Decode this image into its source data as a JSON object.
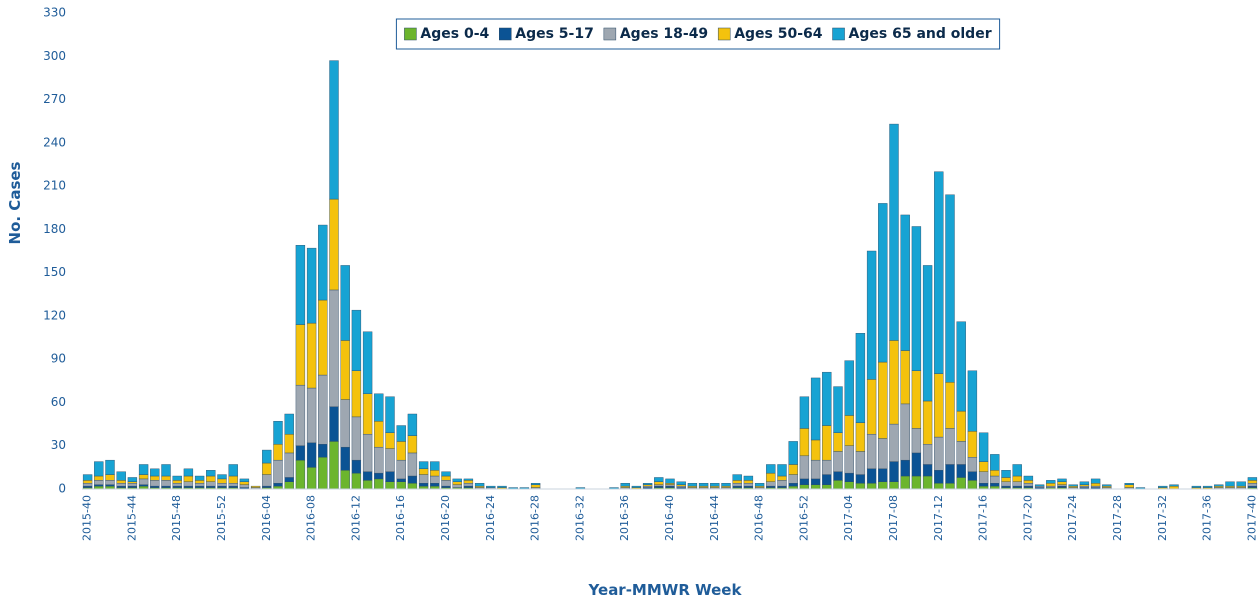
{
  "chart_data": {
    "type": "stacked_bar",
    "y_label": "No. Cases",
    "x_label": "Year-MMWR Week",
    "categories": [
      "2015-40",
      null,
      null,
      null,
      "2015-44",
      null,
      null,
      null,
      "2015-48",
      null,
      null,
      null,
      "2015-52",
      null,
      null,
      null,
      "2016-04",
      null,
      null,
      null,
      "2016-08",
      null,
      null,
      null,
      "2016-12",
      null,
      null,
      null,
      "2016-16",
      null,
      null,
      null,
      "2016-20",
      null,
      null,
      null,
      "2016-24",
      null,
      null,
      null,
      "2016-28",
      null,
      null,
      null,
      "2016-32",
      null,
      null,
      null,
      "2016-36",
      null,
      null,
      null,
      "2016-40",
      null,
      null,
      null,
      "2016-44",
      null,
      null,
      null,
      "2016-48",
      null,
      null,
      null,
      "2016-52",
      null,
      null,
      null,
      "2017-04",
      null,
      null,
      null,
      "2017-08",
      null,
      null,
      null,
      "2017-12",
      null,
      null,
      null,
      "2017-16",
      null,
      null,
      null,
      "2017-20",
      null,
      null,
      null,
      "2017-24",
      null,
      null,
      null,
      "2017-28",
      null,
      null,
      null,
      "2017-32",
      null,
      null,
      null,
      "2017-36",
      null,
      null,
      null,
      "2017-40"
    ],
    "series": [
      {
        "name": "Ages 0-4",
        "color": "#6cb52d",
        "values": [
          1,
          2,
          2,
          1,
          1,
          2,
          1,
          1,
          1,
          1,
          1,
          1,
          1,
          1,
          0,
          0,
          1,
          2,
          5,
          20,
          15,
          22,
          33,
          13,
          11,
          6,
          7,
          5,
          5,
          4,
          2,
          2,
          1,
          1,
          1,
          0,
          0,
          0,
          0,
          0,
          0,
          0,
          0,
          0,
          0,
          0,
          0,
          0,
          0,
          0,
          0,
          1,
          1,
          0,
          0,
          0,
          0,
          0,
          1,
          1,
          0,
          1,
          1,
          2,
          3,
          3,
          3,
          6,
          5,
          4,
          4,
          5,
          5,
          9,
          9,
          9,
          4,
          4,
          8,
          6,
          2,
          2,
          1,
          1,
          1,
          0,
          1,
          1,
          0,
          0,
          0,
          0,
          0,
          0,
          0,
          0,
          0,
          0,
          0,
          0,
          0,
          0,
          0,
          0,
          1
        ]
      },
      {
        "name": "Ages 5-17",
        "color": "#0b5394",
        "values": [
          1,
          1,
          1,
          1,
          1,
          1,
          1,
          1,
          1,
          1,
          1,
          1,
          1,
          1,
          1,
          0,
          1,
          2,
          3,
          10,
          17,
          9,
          24,
          16,
          9,
          6,
          4,
          7,
          2,
          5,
          2,
          2,
          1,
          0,
          1,
          0,
          0,
          0,
          0,
          0,
          0,
          0,
          0,
          0,
          0,
          0,
          0,
          0,
          0,
          0,
          1,
          1,
          1,
          1,
          0,
          0,
          0,
          0,
          1,
          1,
          0,
          1,
          1,
          2,
          4,
          4,
          7,
          6,
          6,
          6,
          10,
          9,
          14,
          11,
          16,
          8,
          9,
          13,
          9,
          6,
          2,
          2,
          1,
          1,
          1,
          1,
          0,
          1,
          0,
          1,
          1,
          0,
          0,
          0,
          0,
          0,
          0,
          0,
          0,
          0,
          0,
          0,
          0,
          0,
          1
        ]
      },
      {
        "name": "Ages 18-49",
        "color": "#9ea7b1",
        "values": [
          2,
          3,
          3,
          2,
          2,
          4,
          4,
          4,
          2,
          3,
          2,
          3,
          2,
          2,
          2,
          1,
          8,
          16,
          17,
          42,
          38,
          48,
          81,
          33,
          30,
          26,
          18,
          16,
          13,
          16,
          6,
          5,
          4,
          2,
          2,
          1,
          1,
          0,
          0,
          0,
          1,
          0,
          0,
          0,
          0,
          0,
          0,
          0,
          1,
          0,
          1,
          1,
          1,
          1,
          1,
          1,
          1,
          1,
          2,
          2,
          1,
          3,
          4,
          6,
          16,
          13,
          10,
          14,
          19,
          16,
          24,
          21,
          26,
          39,
          17,
          14,
          23,
          25,
          16,
          10,
          8,
          5,
          3,
          3,
          2,
          1,
          1,
          1,
          1,
          1,
          1,
          1,
          0,
          1,
          0,
          0,
          0,
          0,
          0,
          0,
          0,
          1,
          1,
          1,
          2
        ]
      },
      {
        "name": "Ages 50-64",
        "color": "#f4c20d",
        "values": [
          2,
          3,
          4,
          2,
          1,
          3,
          3,
          3,
          2,
          4,
          2,
          4,
          3,
          5,
          2,
          1,
          8,
          11,
          13,
          42,
          45,
          52,
          63,
          41,
          32,
          28,
          18,
          11,
          13,
          12,
          4,
          4,
          3,
          2,
          2,
          1,
          0,
          1,
          0,
          0,
          2,
          0,
          0,
          0,
          0,
          0,
          0,
          0,
          1,
          1,
          1,
          2,
          1,
          1,
          1,
          1,
          1,
          1,
          2,
          2,
          1,
          6,
          3,
          7,
          19,
          14,
          24,
          13,
          21,
          20,
          38,
          53,
          58,
          37,
          40,
          30,
          44,
          32,
          21,
          18,
          7,
          4,
          3,
          4,
          2,
          0,
          2,
          2,
          1,
          1,
          2,
          1,
          0,
          2,
          0,
          0,
          1,
          2,
          0,
          1,
          1,
          1,
          1,
          1,
          2
        ]
      },
      {
        "name": "Ages 65 and older",
        "color": "#17a3d3",
        "values": [
          4,
          10,
          10,
          6,
          3,
          7,
          5,
          8,
          3,
          5,
          3,
          4,
          3,
          8,
          2,
          0,
          9,
          16,
          14,
          55,
          52,
          52,
          96,
          52,
          42,
          43,
          19,
          25,
          11,
          15,
          5,
          6,
          3,
          2,
          1,
          2,
          1,
          1,
          1,
          1,
          1,
          0,
          0,
          0,
          1,
          0,
          0,
          1,
          2,
          1,
          1,
          3,
          3,
          2,
          2,
          2,
          2,
          2,
          4,
          3,
          2,
          6,
          8,
          16,
          22,
          43,
          37,
          32,
          38,
          62,
          89,
          110,
          150,
          94,
          100,
          94,
          140,
          130,
          62,
          42,
          20,
          11,
          5,
          8,
          3,
          1,
          2,
          2,
          1,
          2,
          3,
          1,
          0,
          1,
          1,
          0,
          1,
          1,
          0,
          1,
          1,
          1,
          3,
          3,
          2
        ]
      }
    ],
    "ylim": [
      0,
      330
    ],
    "yticks": [
      0,
      30,
      60,
      90,
      120,
      150,
      180,
      210,
      240,
      270,
      300,
      330
    ],
    "grid": false,
    "legend": "top"
  }
}
